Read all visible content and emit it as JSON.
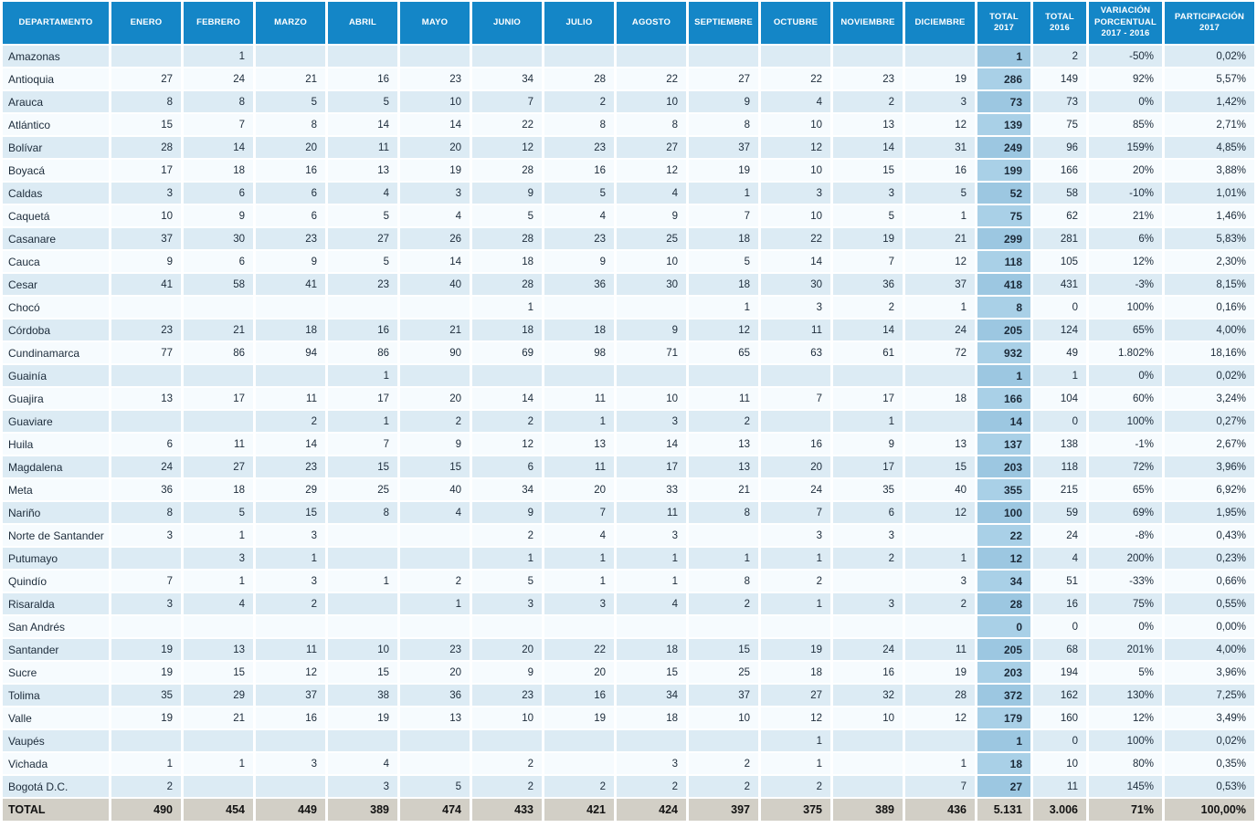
{
  "colors": {
    "header_blue": "#1486c7",
    "stripe_light_blue": "#dcebf4",
    "stripe_white": "#f6fbfe",
    "total2017_column_on_light": "#9cc7e1",
    "total2017_column_on_white": "#a9d0e7",
    "grand_total_row_gray": "#d2cfc6",
    "cell_text": "#1c2b3a",
    "header_text": "#ffffff"
  },
  "table": {
    "columns": [
      "DEPARTAMENTO",
      "ENERO",
      "FEBRERO",
      "MARZO",
      "ABRIL",
      "MAYO",
      "JUNIO",
      "JULIO",
      "AGOSTO",
      "SEPTIEMBRE",
      "OCTUBRE",
      "NOVIEMBRE",
      "DICIEMBRE",
      "TOTAL\n2017",
      "TOTAL\n2016",
      "VARIACIÓN\nPORCENTUAL\n2017 - 2016",
      "PARTICIPACIÓN\n2017"
    ],
    "rows": [
      {
        "name": "Amazonas",
        "months": [
          "",
          "1",
          "",
          "",
          "",
          "",
          "",
          "",
          "",
          "",
          "",
          ""
        ],
        "total_2017": "1",
        "total_2016": "2",
        "variacion": "-50%",
        "participacion": "0,02%"
      },
      {
        "name": "Antioquia",
        "months": [
          "27",
          "24",
          "21",
          "16",
          "23",
          "34",
          "28",
          "22",
          "27",
          "22",
          "23",
          "19"
        ],
        "total_2017": "286",
        "total_2016": "149",
        "variacion": "92%",
        "participacion": "5,57%"
      },
      {
        "name": "Arauca",
        "months": [
          "8",
          "8",
          "5",
          "5",
          "10",
          "7",
          "2",
          "10",
          "9",
          "4",
          "2",
          "3"
        ],
        "total_2017": "73",
        "total_2016": "73",
        "variacion": "0%",
        "participacion": "1,42%"
      },
      {
        "name": "Atlántico",
        "months": [
          "15",
          "7",
          "8",
          "14",
          "14",
          "22",
          "8",
          "8",
          "8",
          "10",
          "13",
          "12"
        ],
        "total_2017": "139",
        "total_2016": "75",
        "variacion": "85%",
        "participacion": "2,71%"
      },
      {
        "name": "Bolívar",
        "months": [
          "28",
          "14",
          "20",
          "11",
          "20",
          "12",
          "23",
          "27",
          "37",
          "12",
          "14",
          "31"
        ],
        "total_2017": "249",
        "total_2016": "96",
        "variacion": "159%",
        "participacion": "4,85%"
      },
      {
        "name": "Boyacá",
        "months": [
          "17",
          "18",
          "16",
          "13",
          "19",
          "28",
          "16",
          "12",
          "19",
          "10",
          "15",
          "16"
        ],
        "total_2017": "199",
        "total_2016": "166",
        "variacion": "20%",
        "participacion": "3,88%"
      },
      {
        "name": "Caldas",
        "months": [
          "3",
          "6",
          "6",
          "4",
          "3",
          "9",
          "5",
          "4",
          "1",
          "3",
          "3",
          "5"
        ],
        "total_2017": "52",
        "total_2016": "58",
        "variacion": "-10%",
        "participacion": "1,01%"
      },
      {
        "name": "Caquetá",
        "months": [
          "10",
          "9",
          "6",
          "5",
          "4",
          "5",
          "4",
          "9",
          "7",
          "10",
          "5",
          "1"
        ],
        "total_2017": "75",
        "total_2016": "62",
        "variacion": "21%",
        "participacion": "1,46%"
      },
      {
        "name": "Casanare",
        "months": [
          "37",
          "30",
          "23",
          "27",
          "26",
          "28",
          "23",
          "25",
          "18",
          "22",
          "19",
          "21"
        ],
        "total_2017": "299",
        "total_2016": "281",
        "variacion": "6%",
        "participacion": "5,83%"
      },
      {
        "name": "Cauca",
        "months": [
          "9",
          "6",
          "9",
          "5",
          "14",
          "18",
          "9",
          "10",
          "5",
          "14",
          "7",
          "12"
        ],
        "total_2017": "118",
        "total_2016": "105",
        "variacion": "12%",
        "participacion": "2,30%"
      },
      {
        "name": "Cesar",
        "months": [
          "41",
          "58",
          "41",
          "23",
          "40",
          "28",
          "36",
          "30",
          "18",
          "30",
          "36",
          "37"
        ],
        "total_2017": "418",
        "total_2016": "431",
        "variacion": "-3%",
        "participacion": "8,15%"
      },
      {
        "name": "Chocó",
        "months": [
          "",
          "",
          "",
          "",
          "",
          "1",
          "",
          "",
          "1",
          "3",
          "2",
          "1"
        ],
        "total_2017": "8",
        "total_2016": "0",
        "variacion": "100%",
        "participacion": "0,16%"
      },
      {
        "name": "Córdoba",
        "months": [
          "23",
          "21",
          "18",
          "16",
          "21",
          "18",
          "18",
          "9",
          "12",
          "11",
          "14",
          "24"
        ],
        "total_2017": "205",
        "total_2016": "124",
        "variacion": "65%",
        "participacion": "4,00%"
      },
      {
        "name": "Cundinamarca",
        "months": [
          "77",
          "86",
          "94",
          "86",
          "90",
          "69",
          "98",
          "71",
          "65",
          "63",
          "61",
          "72"
        ],
        "total_2017": "932",
        "total_2016": "49",
        "variacion": "1.802%",
        "participacion": "18,16%"
      },
      {
        "name": "Guainía",
        "months": [
          "",
          "",
          "",
          "1",
          "",
          "",
          "",
          "",
          "",
          "",
          "",
          ""
        ],
        "total_2017": "1",
        "total_2016": "1",
        "variacion": "0%",
        "participacion": "0,02%"
      },
      {
        "name": "Guajira",
        "months": [
          "13",
          "17",
          "11",
          "17",
          "20",
          "14",
          "11",
          "10",
          "11",
          "7",
          "17",
          "18"
        ],
        "total_2017": "166",
        "total_2016": "104",
        "variacion": "60%",
        "participacion": "3,24%"
      },
      {
        "name": "Guaviare",
        "months": [
          "",
          "",
          "2",
          "1",
          "2",
          "2",
          "1",
          "3",
          "2",
          "",
          "1",
          ""
        ],
        "total_2017": "14",
        "total_2016": "0",
        "variacion": "100%",
        "participacion": "0,27%"
      },
      {
        "name": "Huila",
        "months": [
          "6",
          "11",
          "14",
          "7",
          "9",
          "12",
          "13",
          "14",
          "13",
          "16",
          "9",
          "13"
        ],
        "total_2017": "137",
        "total_2016": "138",
        "variacion": "-1%",
        "participacion": "2,67%"
      },
      {
        "name": "Magdalena",
        "months": [
          "24",
          "27",
          "23",
          "15",
          "15",
          "6",
          "11",
          "17",
          "13",
          "20",
          "17",
          "15"
        ],
        "total_2017": "203",
        "total_2016": "118",
        "variacion": "72%",
        "participacion": "3,96%"
      },
      {
        "name": "Meta",
        "months": [
          "36",
          "18",
          "29",
          "25",
          "40",
          "34",
          "20",
          "33",
          "21",
          "24",
          "35",
          "40"
        ],
        "total_2017": "355",
        "total_2016": "215",
        "variacion": "65%",
        "participacion": "6,92%"
      },
      {
        "name": "Nariño",
        "months": [
          "8",
          "5",
          "15",
          "8",
          "4",
          "9",
          "7",
          "11",
          "8",
          "7",
          "6",
          "12"
        ],
        "total_2017": "100",
        "total_2016": "59",
        "variacion": "69%",
        "participacion": "1,95%"
      },
      {
        "name": "Norte de Santander",
        "months": [
          "3",
          "1",
          "3",
          "",
          "",
          "2",
          "4",
          "3",
          "",
          "3",
          "3",
          ""
        ],
        "total_2017": "22",
        "total_2016": "24",
        "variacion": "-8%",
        "participacion": "0,43%"
      },
      {
        "name": "Putumayo",
        "months": [
          "",
          "3",
          "1",
          "",
          "",
          "1",
          "1",
          "1",
          "1",
          "1",
          "2",
          "1"
        ],
        "total_2017": "12",
        "total_2016": "4",
        "variacion": "200%",
        "participacion": "0,23%"
      },
      {
        "name": "Quindío",
        "months": [
          "7",
          "1",
          "3",
          "1",
          "2",
          "5",
          "1",
          "1",
          "8",
          "2",
          "",
          "3"
        ],
        "total_2017": "34",
        "total_2016": "51",
        "variacion": "-33%",
        "participacion": "0,66%"
      },
      {
        "name": "Risaralda",
        "months": [
          "3",
          "4",
          "2",
          "",
          "1",
          "3",
          "3",
          "4",
          "2",
          "1",
          "3",
          "2"
        ],
        "total_2017": "28",
        "total_2016": "16",
        "variacion": "75%",
        "participacion": "0,55%"
      },
      {
        "name": "San Andrés",
        "months": [
          "",
          "",
          "",
          "",
          "",
          "",
          "",
          "",
          "",
          "",
          "",
          ""
        ],
        "total_2017": "0",
        "total_2016": "0",
        "variacion": "0%",
        "participacion": "0,00%"
      },
      {
        "name": "Santander",
        "months": [
          "19",
          "13",
          "11",
          "10",
          "23",
          "20",
          "22",
          "18",
          "15",
          "19",
          "24",
          "11"
        ],
        "total_2017": "205",
        "total_2016": "68",
        "variacion": "201%",
        "participacion": "4,00%"
      },
      {
        "name": "Sucre",
        "months": [
          "19",
          "15",
          "12",
          "15",
          "20",
          "9",
          "20",
          "15",
          "25",
          "18",
          "16",
          "19"
        ],
        "total_2017": "203",
        "total_2016": "194",
        "variacion": "5%",
        "participacion": "3,96%"
      },
      {
        "name": "Tolima",
        "months": [
          "35",
          "29",
          "37",
          "38",
          "36",
          "23",
          "16",
          "34",
          "37",
          "27",
          "32",
          "28"
        ],
        "total_2017": "372",
        "total_2016": "162",
        "variacion": "130%",
        "participacion": "7,25%"
      },
      {
        "name": "Valle",
        "months": [
          "19",
          "21",
          "16",
          "19",
          "13",
          "10",
          "19",
          "18",
          "10",
          "12",
          "10",
          "12"
        ],
        "total_2017": "179",
        "total_2016": "160",
        "variacion": "12%",
        "participacion": "3,49%"
      },
      {
        "name": "Vaupés",
        "months": [
          "",
          "",
          "",
          "",
          "",
          "",
          "",
          "",
          "",
          "1",
          "",
          ""
        ],
        "total_2017": "1",
        "total_2016": "0",
        "variacion": "100%",
        "participacion": "0,02%"
      },
      {
        "name": "Vichada",
        "months": [
          "1",
          "1",
          "3",
          "4",
          "",
          "2",
          "",
          "3",
          "2",
          "1",
          "",
          "1"
        ],
        "total_2017": "18",
        "total_2016": "10",
        "variacion": "80%",
        "participacion": "0,35%"
      },
      {
        "name": "Bogotá D.C.",
        "months": [
          "2",
          "",
          "",
          "3",
          "5",
          "2",
          "2",
          "2",
          "2",
          "2",
          "",
          "7"
        ],
        "total_2017": "27",
        "total_2016": "11",
        "variacion": "145%",
        "participacion": "0,53%"
      }
    ],
    "grand_total": {
      "name": "TOTAL",
      "months": [
        "490",
        "454",
        "449",
        "389",
        "474",
        "433",
        "421",
        "424",
        "397",
        "375",
        "389",
        "436"
      ],
      "total_2017": "5.131",
      "total_2016": "3.006",
      "variacion": "71%",
      "participacion": "100,00%"
    }
  }
}
